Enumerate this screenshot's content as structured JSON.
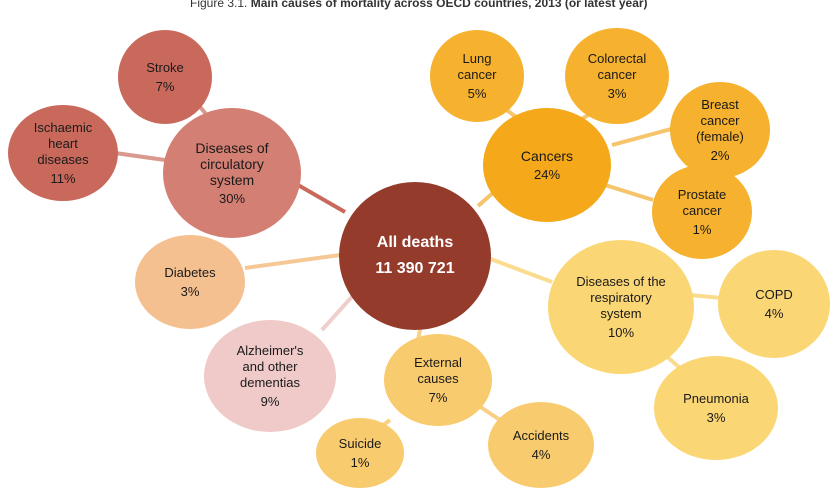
{
  "caption": {
    "prefix": "Figure 3.1.",
    "title": "Main causes of mortality across OECD countries, 2013 (or latest year)"
  },
  "center": {
    "label": "All deaths",
    "value": "11 390 721"
  },
  "groups": {
    "circulatory": {
      "label": "Diseases of\ncirculatory\nsystem",
      "pct": "30%",
      "children": {
        "stroke": {
          "label": "Stroke",
          "pct": "7%"
        },
        "ischaemic": {
          "label": "Ischaemic\nheart\ndiseases",
          "pct": "11%"
        }
      }
    },
    "cancers": {
      "label": "Cancers",
      "pct": "24%",
      "children": {
        "lung": {
          "label": "Lung\ncancer",
          "pct": "5%"
        },
        "colorectal": {
          "label": "Colorectal\ncancer",
          "pct": "3%"
        },
        "breast": {
          "label": "Breast\ncancer\n(female)",
          "pct": "2%"
        },
        "prostate": {
          "label": "Prostate\ncancer",
          "pct": "1%"
        }
      }
    },
    "respiratory": {
      "label": "Diseases of the\nrespiratory\nsystem",
      "pct": "10%",
      "children": {
        "copd": {
          "label": "COPD",
          "pct": "4%"
        },
        "pneumonia": {
          "label": "Pneumonia",
          "pct": "3%"
        }
      }
    },
    "external": {
      "label": "External\ncauses",
      "pct": "7%",
      "children": {
        "suicide": {
          "label": "Suicide",
          "pct": "1%"
        },
        "accidents": {
          "label": "Accidents",
          "pct": "4%"
        }
      }
    },
    "diabetes": {
      "label": "Diabetes",
      "pct": "3%"
    },
    "alzheimer": {
      "label": "Alzheimer's\nand other\ndementias",
      "pct": "9%"
    }
  },
  "colors": {
    "circulatory": "#c9695c",
    "center": "#943b2c",
    "cancers": "#f4a81a",
    "respiratory": "#fbd675",
    "diabetes": "#f5c08f",
    "alzheimer": "#efcac8",
    "external": "#f9cb6f"
  }
}
